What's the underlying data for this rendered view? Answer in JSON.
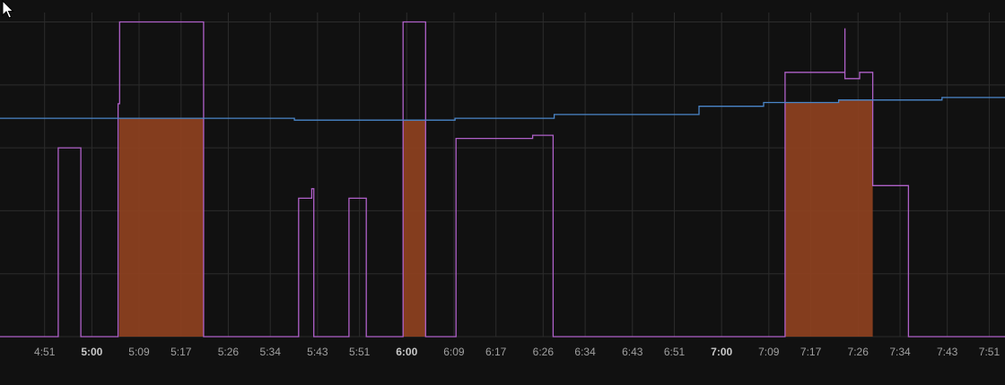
{
  "chart_data": {
    "type": "line",
    "title": "",
    "xlabel": "",
    "ylabel": "",
    "x_ticks": [
      {
        "label": "4:51",
        "t": 291,
        "bold": false
      },
      {
        "label": "5:00",
        "t": 300,
        "bold": true
      },
      {
        "label": "5:09",
        "t": 309,
        "bold": false
      },
      {
        "label": "5:17",
        "t": 317,
        "bold": false
      },
      {
        "label": "5:26",
        "t": 326,
        "bold": false
      },
      {
        "label": "5:34",
        "t": 334,
        "bold": false
      },
      {
        "label": "5:43",
        "t": 343,
        "bold": false
      },
      {
        "label": "5:51",
        "t": 351,
        "bold": false
      },
      {
        "label": "6:00",
        "t": 360,
        "bold": true
      },
      {
        "label": "6:09",
        "t": 369,
        "bold": false
      },
      {
        "label": "6:17",
        "t": 377,
        "bold": false
      },
      {
        "label": "6:26",
        "t": 386,
        "bold": false
      },
      {
        "label": "6:34",
        "t": 394,
        "bold": false
      },
      {
        "label": "6:43",
        "t": 403,
        "bold": false
      },
      {
        "label": "6:51",
        "t": 411,
        "bold": false
      },
      {
        "label": "7:00",
        "t": 420,
        "bold": true
      },
      {
        "label": "7:09",
        "t": 429,
        "bold": false
      },
      {
        "label": "7:17",
        "t": 437,
        "bold": false
      },
      {
        "label": "7:26",
        "t": 446,
        "bold": false
      },
      {
        "label": "7:34",
        "t": 454,
        "bold": false
      },
      {
        "label": "7:43",
        "t": 463,
        "bold": false
      },
      {
        "label": "7:51",
        "t": 471,
        "bold": false
      }
    ],
    "x_domain": [
      282.5,
      474.0
    ],
    "y_domain": [
      0,
      5.15
    ],
    "grid": true,
    "series": [
      {
        "color": "#b061c9",
        "fill": false,
        "step": true,
        "points": [
          [
            282.5,
            0
          ],
          [
            293.6,
            0
          ],
          [
            293.6,
            3.0
          ],
          [
            297.9,
            3.0
          ],
          [
            297.9,
            0
          ],
          [
            305.0,
            0
          ],
          [
            305.0,
            3.7
          ],
          [
            305.3,
            3.7
          ],
          [
            305.3,
            5.0
          ],
          [
            321.3,
            5.0
          ],
          [
            321.3,
            0
          ],
          [
            339.4,
            0
          ],
          [
            339.4,
            2.2
          ],
          [
            341.9,
            2.2
          ],
          [
            341.9,
            2.35
          ],
          [
            342.3,
            2.35
          ],
          [
            342.3,
            0
          ],
          [
            349.0,
            0
          ],
          [
            349.0,
            2.2
          ],
          [
            352.3,
            2.2
          ],
          [
            352.3,
            0
          ],
          [
            359.3,
            0
          ],
          [
            359.3,
            5.0
          ],
          [
            363.6,
            5.0
          ],
          [
            363.6,
            0
          ],
          [
            369.4,
            0
          ],
          [
            369.4,
            3.15
          ],
          [
            384.0,
            3.15
          ],
          [
            384.0,
            3.2
          ],
          [
            387.9,
            3.2
          ],
          [
            387.9,
            0
          ],
          [
            432.1,
            0
          ],
          [
            432.1,
            4.2
          ],
          [
            443.5,
            4.2
          ],
          [
            443.5,
            4.6
          ],
          [
            443.5,
            4.9
          ],
          [
            443.5,
            4.1
          ],
          [
            446.3,
            4.1
          ],
          [
            446.3,
            4.1
          ],
          [
            446.3,
            4.2
          ],
          [
            448.8,
            4.2
          ],
          [
            448.8,
            2.4
          ],
          [
            455.6,
            2.4
          ],
          [
            455.6,
            0
          ],
          [
            474.0,
            0
          ]
        ]
      },
      {
        "color": "#4a86c9",
        "fill": false,
        "step": true,
        "points": [
          [
            282.5,
            3.47
          ],
          [
            338.6,
            3.47
          ],
          [
            338.6,
            3.44
          ],
          [
            369.2,
            3.44
          ],
          [
            369.2,
            3.47
          ],
          [
            388.1,
            3.47
          ],
          [
            388.1,
            3.53
          ],
          [
            415.7,
            3.53
          ],
          [
            415.7,
            3.66
          ],
          [
            428.0,
            3.66
          ],
          [
            428.0,
            3.72
          ],
          [
            442.3,
            3.72
          ],
          [
            442.3,
            3.76
          ],
          [
            462.0,
            3.76
          ],
          [
            462.0,
            3.8
          ],
          [
            474.0,
            3.8
          ]
        ]
      },
      {
        "color": "#8b4020",
        "fill": true,
        "step": true,
        "points": [
          [
            282.5,
            0
          ],
          [
            305.2,
            0
          ],
          [
            305.2,
            3.47
          ],
          [
            321.3,
            3.47
          ],
          [
            321.3,
            0
          ],
          [
            359.3,
            0
          ],
          [
            359.3,
            3.44
          ],
          [
            363.6,
            3.44
          ],
          [
            363.6,
            0
          ],
          [
            432.1,
            0
          ],
          [
            432.1,
            3.72
          ],
          [
            442.3,
            3.72
          ],
          [
            442.3,
            3.76
          ],
          [
            448.8,
            3.76
          ],
          [
            448.8,
            0
          ],
          [
            474.0,
            0
          ]
        ]
      }
    ]
  },
  "theme": {
    "background": "#111111",
    "grid_color": "#2c2c2c",
    "tick_color": "#a0a0a0",
    "tick_bold_color": "#c8c8c8"
  },
  "cursor_icon": "arrow-pointer-icon"
}
